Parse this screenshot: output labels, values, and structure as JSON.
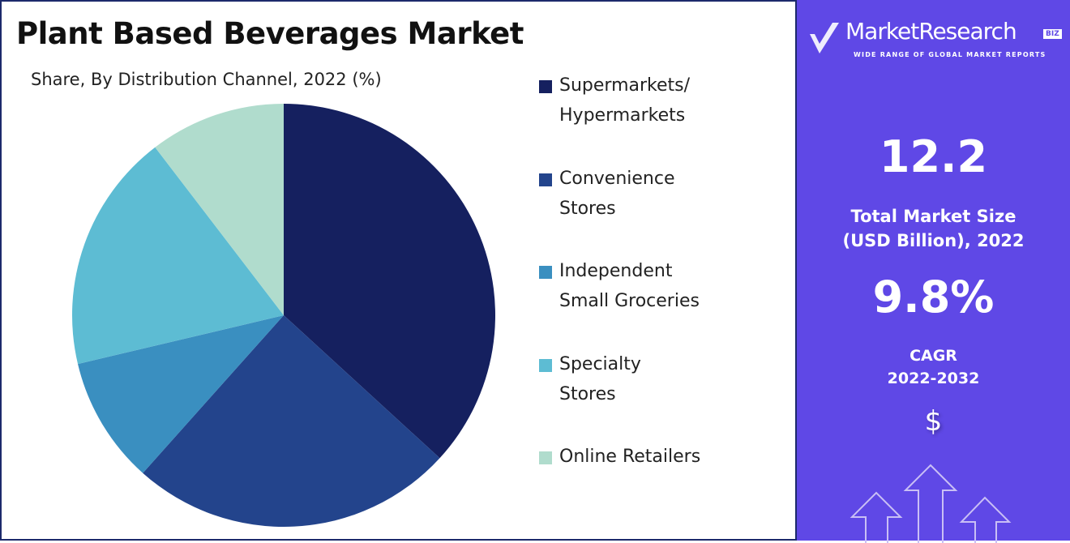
{
  "chart_data": {
    "type": "pie",
    "title": "Plant Based Beverages Market",
    "subtitle": "Share, By Distribution Channel, 2022 (%)",
    "categories": [
      "Supermarkets/ Hypermarkets",
      "Convenience Stores",
      "Independent Small Groceries",
      "Specialty Stores",
      "Online Retailers"
    ],
    "values": [
      36.8,
      24.8,
      9.7,
      18.3,
      10.4
    ],
    "colors": [
      "#15205f",
      "#23448c",
      "#3a8fc0",
      "#5dbcd3",
      "#b0dccd"
    ],
    "legend_lines": [
      [
        "Supermarkets/",
        "Hypermarkets"
      ],
      [
        "Convenience",
        "Stores"
      ],
      [
        "Independent",
        "Small Groceries"
      ],
      [
        "Specialty",
        "Stores"
      ],
      [
        "Online Retailers"
      ]
    ],
    "legend_position": "right"
  },
  "panel": {
    "logo_name": "MarketResearch",
    "logo_badge": "BIZ",
    "logo_tagline": "WIDE RANGE OF GLOBAL MARKET REPORTS",
    "market_size": "12.2",
    "market_size_label_1": "Total Market Size",
    "market_size_label_2": "(USD Billion), 2022",
    "cagr": "9.8%",
    "cagr_label_1": "CAGR",
    "cagr_label_2": "2022-2032",
    "currency_symbol": "$"
  }
}
